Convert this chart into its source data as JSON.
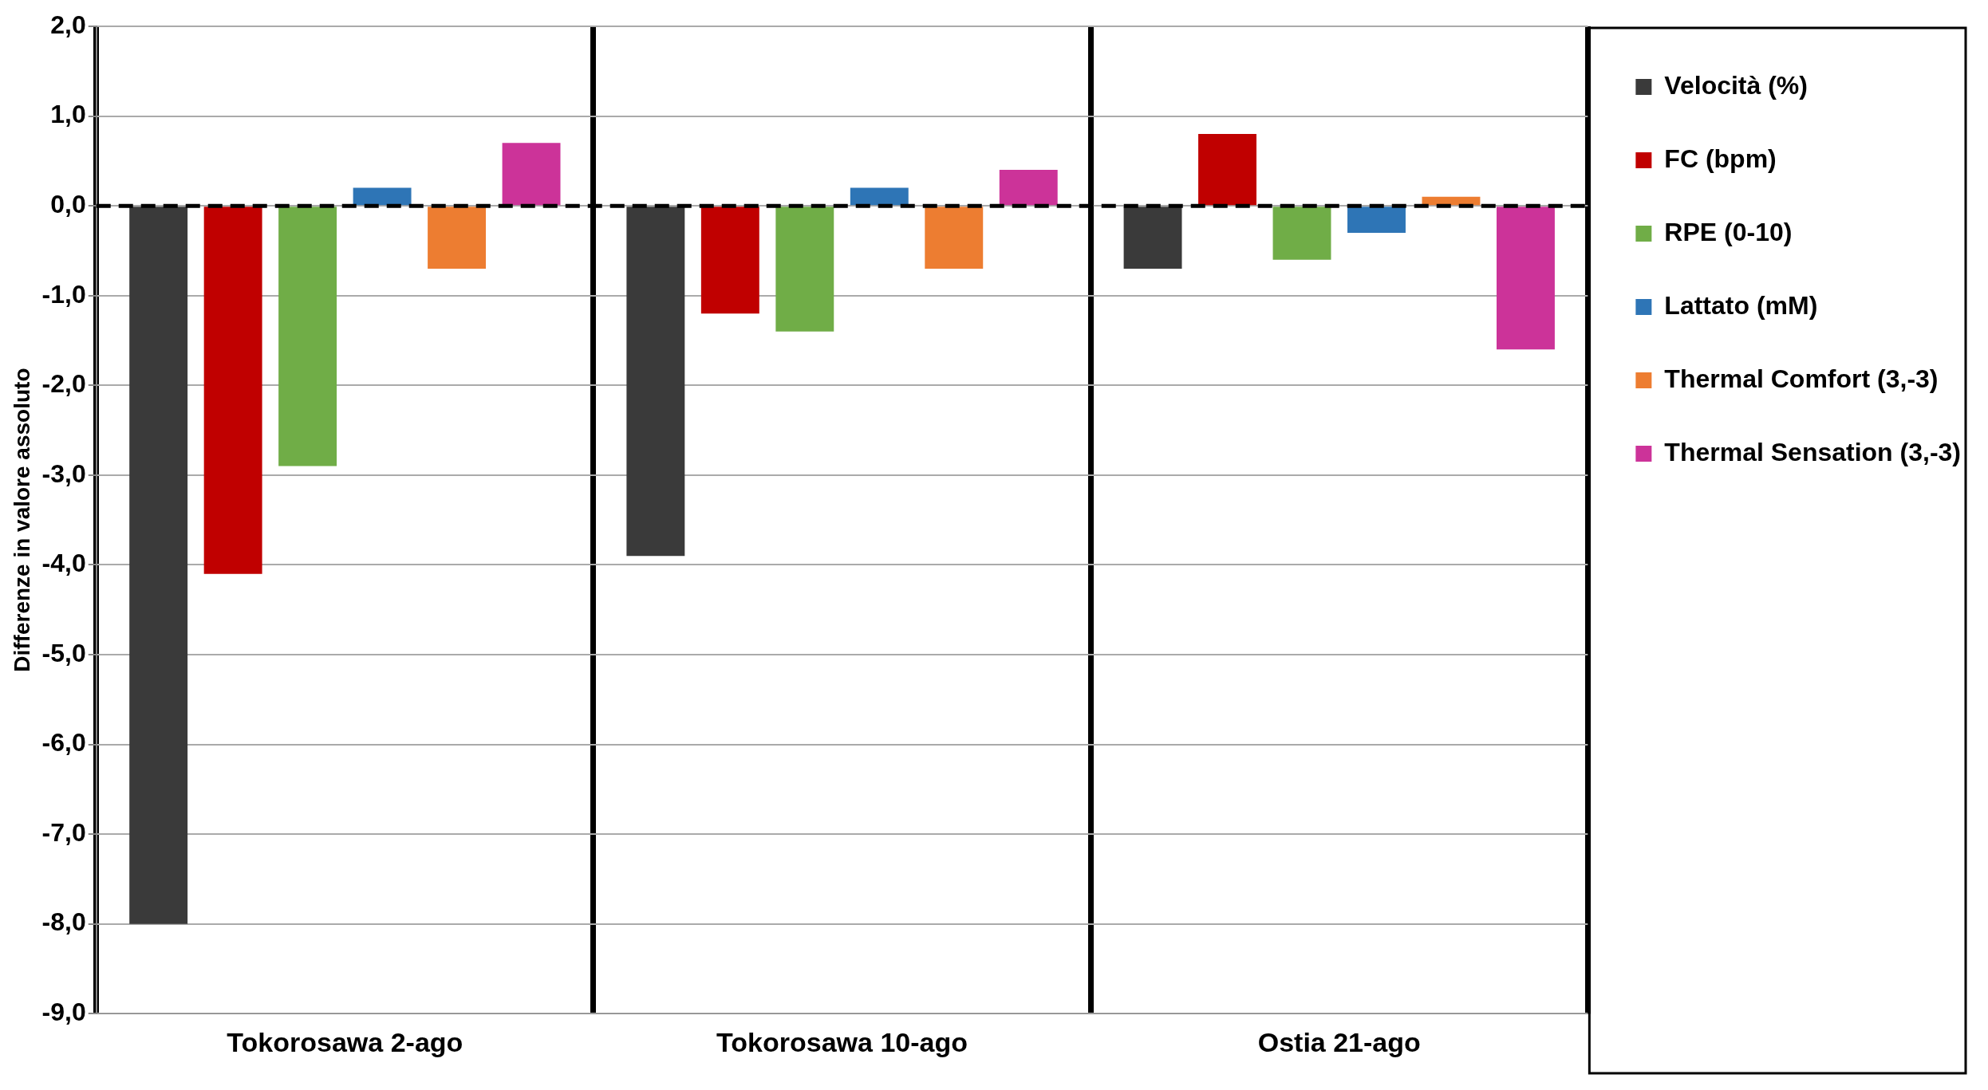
{
  "chart_data": {
    "type": "bar",
    "ylabel": "Differenze in valore assoluto",
    "categories": [
      "Tokorosawa 2-ago",
      "Tokorosawa 10-ago",
      "Ostia 21-ago"
    ],
    "series": [
      {
        "name": "Velocità (%)",
        "color": "#3a3a3a",
        "values": [
          -8.0,
          -3.9,
          -0.7
        ]
      },
      {
        "name": "FC (bpm)",
        "color": "#c00000",
        "values": [
          -4.1,
          -1.2,
          0.8
        ]
      },
      {
        "name": "RPE (0-10)",
        "color": "#70ad47",
        "values": [
          -2.9,
          -1.4,
          -0.6
        ]
      },
      {
        "name": "Lattato (mM)",
        "color": "#2e75b6",
        "values": [
          0.2,
          0.2,
          -0.3
        ]
      },
      {
        "name": "Thermal Comfort (3,-3)",
        "color": "#ed7d31",
        "values": [
          -0.7,
          -0.7,
          0.1
        ]
      },
      {
        "name": "Thermal Sensation (3,-3)",
        "color": "#cc3399",
        "values": [
          0.7,
          0.4,
          -1.6
        ]
      }
    ],
    "ylim": [
      -9,
      2
    ],
    "yticks": [
      {
        "value": -9,
        "label": "-9,0"
      },
      {
        "value": -8,
        "label": "-8,0"
      },
      {
        "value": -7,
        "label": "-7,0"
      },
      {
        "value": -6,
        "label": "-6,0"
      },
      {
        "value": -5,
        "label": "-5,0"
      },
      {
        "value": -4,
        "label": "-4,0"
      },
      {
        "value": -3,
        "label": "-3,0"
      },
      {
        "value": -2,
        "label": "-2,0"
      },
      {
        "value": -1,
        "label": "-1,0"
      },
      {
        "value": 0,
        "label": "0,0"
      },
      {
        "value": 1,
        "label": "1,0"
      },
      {
        "value": 2,
        "label": "2,0"
      }
    ],
    "ref_lines": [
      {
        "axis": "y",
        "value": 0,
        "color": "#000000",
        "line_style": "dashed"
      }
    ],
    "grid": true,
    "legend": "top right"
  }
}
